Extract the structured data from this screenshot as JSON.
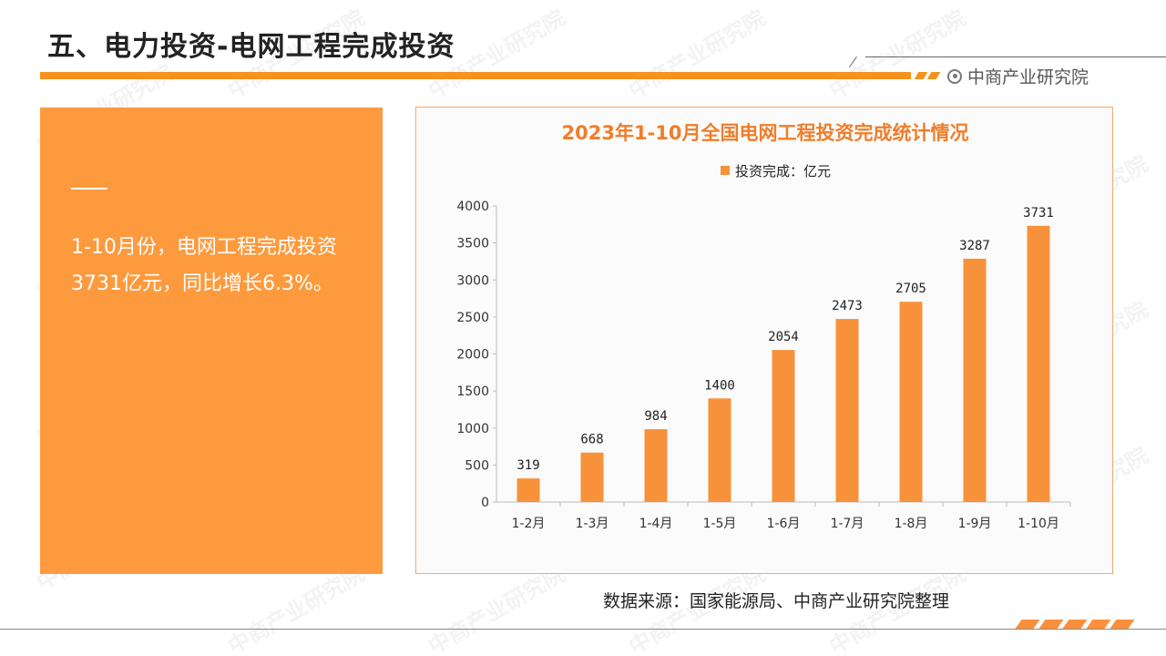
{
  "header": {
    "title": "五、电力投资-电网工程完成投资",
    "brand": "中商产业研究院"
  },
  "summary": {
    "line1": "1-10月份，电网工程完成投资",
    "line2": "3731亿元，同比增长6.3%。"
  },
  "colors": {
    "accent": "#f7921e",
    "panel": "#fd9a3d",
    "bar": "#f7923a",
    "chart_title": "#f07d2b"
  },
  "chart_data": {
    "type": "bar",
    "title": "2023年1-10月全国电网工程投资完成统计情况",
    "categories": [
      "1-2月",
      "1-3月",
      "1-4月",
      "1-5月",
      "1-6月",
      "1-7月",
      "1-8月",
      "1-9月",
      "1-10月"
    ],
    "series": [
      {
        "name": "投资完成：亿元",
        "values": [
          319,
          668,
          984,
          1400,
          2054,
          2473,
          2705,
          3287,
          3731
        ]
      }
    ],
    "yticks": [
      0,
      500,
      1000,
      1500,
      2000,
      2500,
      3000,
      3500,
      4000
    ],
    "ylim": [
      0,
      4000
    ],
    "legend_position": "top-center",
    "grid": false
  },
  "footer": {
    "source": "数据来源：国家能源局、中商产业研究院整理"
  }
}
